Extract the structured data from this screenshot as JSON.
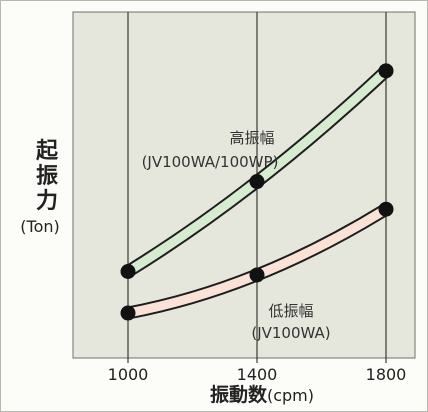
{
  "chart_data": {
    "type": "line",
    "ylabel_main": "起振力",
    "ylabel_unit": "(Ton)",
    "xlabel_main": "振動数",
    "xlabel_unit": "(cpm)",
    "x": [
      1000,
      1400,
      1800
    ],
    "xticks": [
      "1000",
      "1400",
      "1800"
    ],
    "xlim": [
      1000,
      1800
    ],
    "ylim": [
      0,
      100
    ],
    "grid": "vertical",
    "series": [
      {
        "name_line1": "高振幅",
        "name_line2": "(JV100WA/100WP)",
        "values": [
          25,
          51,
          83
        ],
        "color": "#d6ecd0",
        "edge": "#1e1e1e"
      },
      {
        "name_line1": "低振幅",
        "name_line2": "(JV100WA)",
        "values": [
          13,
          24,
          43
        ],
        "color": "#fbe2d6",
        "edge": "#1e1e1e"
      }
    ],
    "plot_background": "#e6e7dc"
  }
}
